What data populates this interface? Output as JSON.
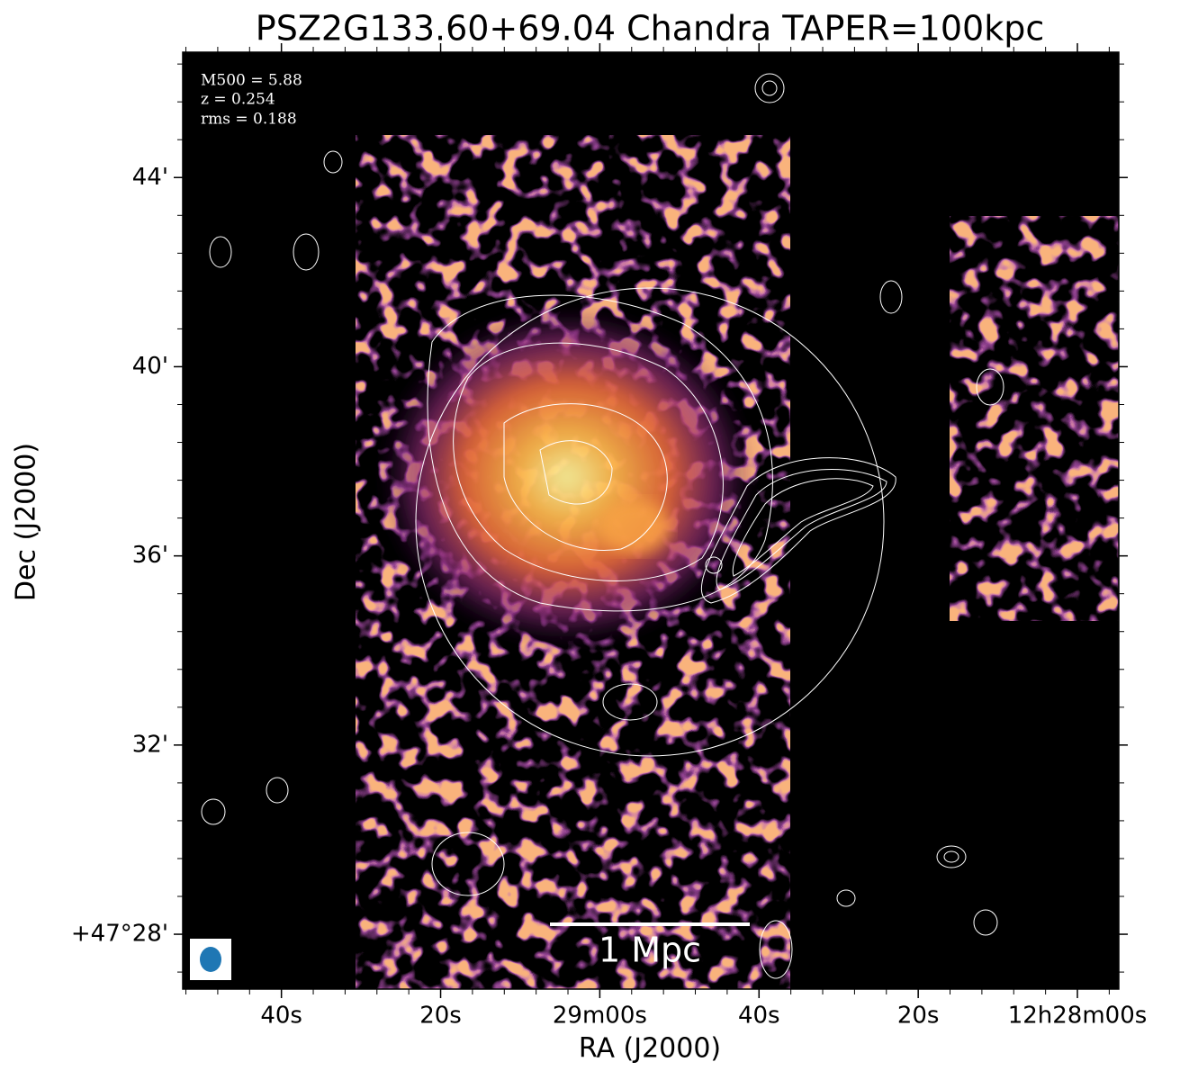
{
  "chart_data": {
    "type": "image",
    "title": "PSZ2G133.60+69.04 Chandra TAPER=100kpc",
    "xlabel": "RA (J2000)",
    "ylabel": "Dec (J2000)",
    "xlim": [
      112.4,
      -5.2
    ],
    "ylim": [
      26.84,
      46.65
    ],
    "xticks": [
      {
        "value": 100,
        "label": "40s"
      },
      {
        "value": 80,
        "label": "20s"
      },
      {
        "value": 60,
        "label": "29m00s"
      },
      {
        "value": 40,
        "label": "40s"
      },
      {
        "value": 20,
        "label": "20s"
      },
      {
        "value": 0,
        "label": "12h28m00s"
      }
    ],
    "yticks": [
      {
        "value": 28,
        "label": "+47°28'"
      },
      {
        "value": 32,
        "label": "32'"
      },
      {
        "value": 36,
        "label": "36'"
      },
      {
        "value": 40,
        "label": "40'"
      },
      {
        "value": 44,
        "label": "44'"
      }
    ],
    "annotations": [
      "M500 = 5.88",
      "z = 0.254",
      "rms = 0.188"
    ],
    "scalebar_label": "1 Mpc"
  }
}
